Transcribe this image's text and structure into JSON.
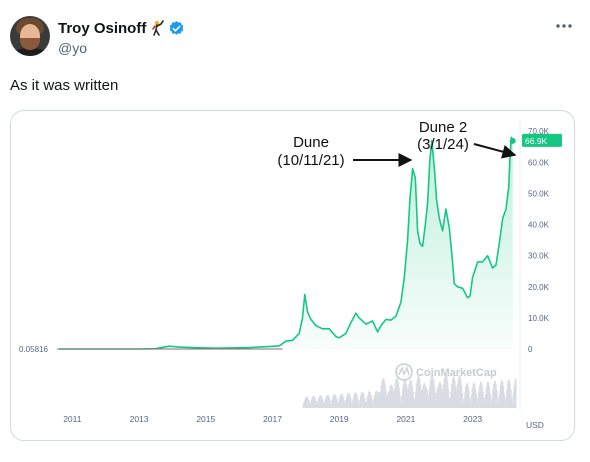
{
  "post": {
    "author_name": "Troy Osinoff",
    "author_handle": "@yo",
    "text": "As it was written",
    "author_emoji": "person-fencing-emoji",
    "verified": "verified-badge-icon",
    "more": "more-options-icon"
  },
  "chart_data": {
    "type": "area",
    "x_ticks": [
      "2011",
      "2013",
      "2015",
      "2017",
      "2019",
      "2021",
      "2023"
    ],
    "y_ticks": [
      "0",
      "10.0K",
      "20.0K",
      "30.0K",
      "40.0K",
      "50.0K",
      "60.0K",
      "70.0K"
    ],
    "y_tick_values": [
      0,
      10000,
      20000,
      30000,
      40000,
      50000,
      60000,
      70000
    ],
    "ylim": [
      0,
      72000
    ],
    "xlim": [
      2010.6,
      2024.3
    ],
    "currency": "USD",
    "start_price_label": "0.05816",
    "current_price_label": "66.9K",
    "watermark": "CoinMarketCap",
    "line_color": "#16c784",
    "series": [
      {
        "x": [
          2010.6,
          2011.0,
          2011.5,
          2012.0,
          2012.5,
          2013.0,
          2013.5,
          2013.9,
          2014.2,
          2014.8,
          2015.3,
          2015.8,
          2016.3,
          2016.8,
          2017.2,
          2017.4,
          2017.6,
          2017.8,
          2017.9,
          2017.97,
          2018.05,
          2018.15,
          2018.3,
          2018.5,
          2018.7,
          2018.9,
          2019.0,
          2019.2,
          2019.35,
          2019.5,
          2019.6,
          2019.8,
          2020.0,
          2020.15,
          2020.25,
          2020.4,
          2020.55,
          2020.7,
          2020.85,
          2020.95,
          2021.05,
          2021.12,
          2021.2,
          2021.28,
          2021.35,
          2021.42,
          2021.5,
          2021.58,
          2021.65,
          2021.72,
          2021.78,
          2021.86,
          2021.92,
          2022.0,
          2022.1,
          2022.2,
          2022.3,
          2022.38,
          2022.45,
          2022.55,
          2022.7,
          2022.85,
          2022.92,
          2023.0,
          2023.15,
          2023.3,
          2023.45,
          2023.6,
          2023.7,
          2023.8,
          2023.9,
          2024.0,
          2024.08,
          2024.12,
          2024.16,
          2024.2
        ],
        "y": [
          0.06,
          0.5,
          10,
          5,
          8,
          13,
          100,
          900,
          600,
          400,
          250,
          350,
          450,
          750,
          1000,
          2500,
          2800,
          5000,
          10000,
          17500,
          12000,
          9500,
          7500,
          6500,
          6500,
          4000,
          3600,
          5000,
          8500,
          11500,
          10000,
          8000,
          9000,
          5500,
          7500,
          9500,
          9300,
          10500,
          15000,
          23000,
          35000,
          48000,
          58000,
          55000,
          38000,
          34000,
          33000,
          40000,
          47000,
          61000,
          67000,
          57000,
          48000,
          42000,
          38000,
          45000,
          39000,
          30000,
          21000,
          20000,
          19500,
          16500,
          17000,
          23000,
          28000,
          28000,
          30000,
          26000,
          27000,
          34000,
          42000,
          45000,
          52000,
          62000,
          68000,
          66900
        ]
      }
    ],
    "annotations": [
      {
        "label": "Dune",
        "date": "(10/11/21)"
      },
      {
        "label": "Dune 2",
        "date": "(3/1/24)"
      }
    ]
  }
}
